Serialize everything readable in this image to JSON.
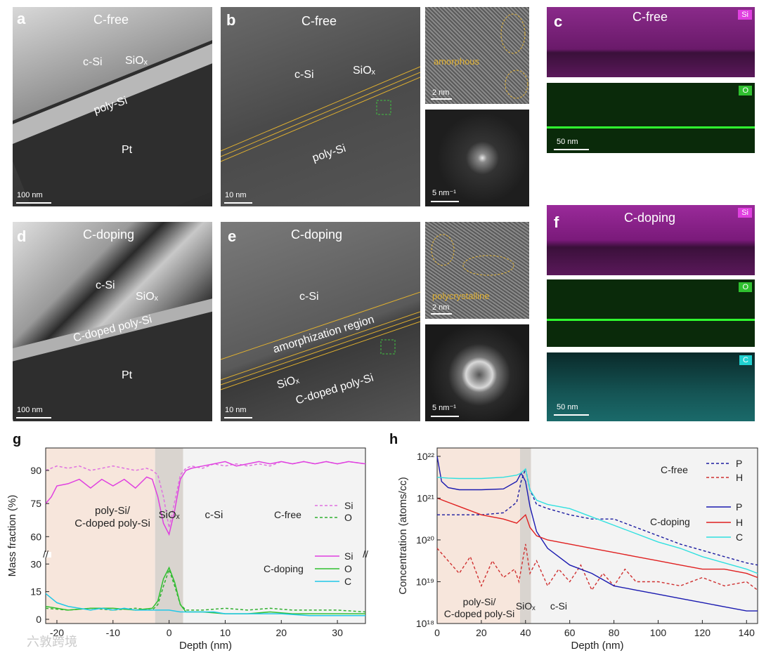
{
  "panels": {
    "a": {
      "letter": "a",
      "title": "C-free",
      "labels": {
        "csi": "c-Si",
        "siox": "SiOₓ",
        "polysi": "poly-Si",
        "pt": "Pt"
      },
      "scale": "100 nm"
    },
    "b": {
      "letter": "b",
      "title": "C-free",
      "labels": {
        "csi": "c-Si",
        "siox": "SiOₓ",
        "polysi": "poly-Si"
      },
      "scale": "10 nm"
    },
    "b_inset_hr": {
      "label": "amorphous",
      "scale": "2 nm"
    },
    "b_inset_fft": {
      "scale": "5 nm⁻¹"
    },
    "c": {
      "letter": "c",
      "title": "C-free",
      "maps": [
        {
          "element": "Si",
          "color": "#e040e0"
        },
        {
          "element": "O",
          "color": "#30d030"
        }
      ],
      "scale": "50 nm"
    },
    "d": {
      "letter": "d",
      "title": "C-doping",
      "labels": {
        "csi": "c-Si",
        "siox": "SiOₓ",
        "polysi": "C-doped poly-Si",
        "pt": "Pt"
      },
      "scale": "100 nm"
    },
    "e": {
      "letter": "e",
      "title": "C-doping",
      "labels": {
        "csi": "c-Si",
        "amorph": "amorphization region",
        "siox": "SiOₓ",
        "polysi": "C-doped poly-Si"
      },
      "scale": "10 nm"
    },
    "e_inset_hr": {
      "label": "polycrystalline",
      "scale": "2 nm"
    },
    "e_inset_fft": {
      "scale": "5 nm⁻¹"
    },
    "f": {
      "letter": "f",
      "title": "C-doping",
      "maps": [
        {
          "element": "Si",
          "color": "#e040e0"
        },
        {
          "element": "O",
          "color": "#30d030"
        },
        {
          "element": "C",
          "color": "#20d0d0"
        }
      ],
      "scale": "50 nm"
    }
  },
  "watermark": "六敦跨境",
  "chart_data": [
    {
      "id": "g",
      "letter": "g",
      "type": "line",
      "xlabel": "Depth (nm)",
      "ylabel": "Mass fraction (%)",
      "xlim": [
        -22,
        35
      ],
      "xticks": [
        -20,
        -10,
        0,
        10,
        20,
        30
      ],
      "yticks_upper": [
        60,
        75,
        90
      ],
      "yticks_lower": [
        0,
        15,
        30
      ],
      "region_labels": {
        "left": "poly-Si/\nC-doped poly-Si",
        "mid": "SiOₓ",
        "right": "c-Si"
      },
      "legend": {
        "cfree": "C-free",
        "cdoping": "C-doping"
      },
      "series": [
        {
          "name": "Si",
          "group": "C-free",
          "style": "dashed",
          "color": "#e070e0",
          "x": [
            -22,
            -20,
            -18,
            -16,
            -14,
            -12,
            -10,
            -8,
            -6,
            -4,
            -3,
            -2,
            -1,
            0,
            1,
            2,
            3,
            4,
            6,
            8,
            10,
            12,
            14,
            16,
            18,
            20,
            22,
            24,
            26,
            28,
            30,
            32,
            35
          ],
          "y": [
            90,
            92,
            91,
            92,
            90,
            91,
            92,
            91,
            90,
            91,
            90,
            88,
            78,
            64,
            76,
            88,
            91,
            92,
            91,
            93,
            92,
            93,
            92,
            93,
            92,
            94,
            93,
            94,
            93,
            94,
            93,
            94,
            93
          ]
        },
        {
          "name": "O",
          "group": "C-free",
          "style": "dashed",
          "color": "#30b030",
          "x": [
            -22,
            -18,
            -14,
            -10,
            -6,
            -3,
            -2,
            -1,
            0,
            1,
            2,
            3,
            6,
            10,
            14,
            18,
            22,
            26,
            30,
            35
          ],
          "y": [
            6,
            5,
            6,
            5,
            6,
            5,
            8,
            18,
            27,
            18,
            8,
            5,
            5,
            6,
            5,
            6,
            5,
            5,
            5,
            4
          ]
        },
        {
          "name": "Si",
          "group": "C-doping",
          "style": "solid",
          "color": "#e040e0",
          "x": [
            -22,
            -21,
            -20,
            -18,
            -16,
            -14,
            -12,
            -10,
            -8,
            -6,
            -4,
            -3,
            -2,
            -1,
            0,
            1,
            2,
            3,
            4,
            6,
            8,
            10,
            12,
            14,
            16,
            18,
            20,
            22,
            24,
            26,
            28,
            30,
            32,
            35
          ],
          "y": [
            75,
            78,
            83,
            84,
            86,
            82,
            86,
            83,
            86,
            82,
            87,
            86,
            78,
            66,
            61,
            72,
            86,
            90,
            91,
            92,
            93,
            94,
            92,
            93,
            94,
            93,
            94,
            93,
            94,
            93,
            94,
            93,
            94,
            93
          ]
        },
        {
          "name": "O",
          "group": "C-doping",
          "style": "solid",
          "color": "#30c030",
          "x": [
            -22,
            -18,
            -14,
            -10,
            -6,
            -3,
            -2,
            -1,
            0,
            1,
            2,
            3,
            6,
            10,
            14,
            18,
            22,
            26,
            30,
            35
          ],
          "y": [
            7,
            5,
            6,
            6,
            5,
            6,
            10,
            22,
            28,
            20,
            8,
            4,
            4,
            3,
            3,
            4,
            3,
            3,
            3,
            3
          ]
        },
        {
          "name": "C",
          "group": "C-doping",
          "style": "solid",
          "color": "#20c8e8",
          "x": [
            -22,
            -20,
            -18,
            -16,
            -14,
            -12,
            -10,
            -8,
            -6,
            -4,
            -2,
            0,
            2,
            4,
            6,
            8,
            10,
            15,
            20,
            25,
            30,
            35
          ],
          "y": [
            14,
            9,
            7,
            6,
            5,
            6,
            5,
            6,
            5,
            5,
            5,
            5,
            4,
            4,
            4,
            4,
            3,
            3,
            3,
            2,
            2,
            2
          ]
        }
      ]
    },
    {
      "id": "h",
      "letter": "h",
      "type": "line",
      "xlabel": "Depth (nm)",
      "ylabel": "Concentration (atoms/cc)",
      "xlim": [
        0,
        145
      ],
      "xticks": [
        0,
        20,
        40,
        60,
        80,
        100,
        120,
        140
      ],
      "ylim_log": [
        18,
        22.2
      ],
      "ytick_labels": [
        "10¹⁸",
        "10¹⁹",
        "10²⁰",
        "10²¹",
        "10²²"
      ],
      "region_labels": {
        "left": "poly-Si/\nC-doped poly-Si",
        "mid": "SiOₓ",
        "right": "c-Si"
      },
      "legend": {
        "cfree": "C-free",
        "cdoping": "C-doping"
      },
      "series": [
        {
          "name": "P",
          "group": "C-free",
          "style": "dashed",
          "color": "#1a1aa0",
          "x": [
            0,
            5,
            10,
            20,
            30,
            36,
            38,
            40,
            42,
            45,
            50,
            60,
            70,
            80,
            90,
            100,
            110,
            120,
            130,
            140,
            145
          ],
          "log": [
            20.6,
            20.6,
            20.6,
            20.6,
            20.65,
            20.9,
            21.4,
            21.7,
            21.2,
            20.85,
            20.75,
            20.6,
            20.5,
            20.5,
            20.3,
            20.1,
            19.9,
            19.75,
            19.6,
            19.45,
            19.4
          ]
        },
        {
          "name": "H",
          "group": "C-free",
          "style": "dashed",
          "color": "#d03030",
          "x": [
            0,
            5,
            10,
            15,
            20,
            25,
            30,
            35,
            37,
            40,
            42,
            45,
            50,
            55,
            60,
            65,
            70,
            75,
            80,
            85,
            90,
            100,
            110,
            120,
            130,
            140,
            145
          ],
          "log": [
            19.8,
            19.5,
            19.2,
            19.6,
            18.9,
            19.5,
            19.1,
            19.3,
            19.0,
            19.9,
            19.2,
            19.5,
            18.9,
            19.3,
            19.0,
            19.4,
            18.8,
            19.2,
            18.9,
            19.3,
            19.0,
            19.0,
            18.9,
            19.1,
            18.9,
            19.0,
            18.8
          ]
        },
        {
          "name": "P",
          "group": "C-doping",
          "style": "solid",
          "color": "#1a1ab0",
          "x": [
            0,
            2,
            5,
            10,
            20,
            30,
            36,
            38,
            40,
            42,
            45,
            50,
            60,
            70,
            80,
            90,
            100,
            110,
            120,
            130,
            140,
            145
          ],
          "log": [
            22.0,
            21.4,
            21.25,
            21.2,
            21.2,
            21.22,
            21.4,
            21.6,
            21.4,
            20.8,
            20.2,
            19.8,
            19.4,
            19.2,
            18.9,
            18.8,
            18.7,
            18.6,
            18.5,
            18.4,
            18.3,
            18.3
          ]
        },
        {
          "name": "H",
          "group": "C-doping",
          "style": "solid",
          "color": "#e02020",
          "x": [
            0,
            5,
            10,
            20,
            30,
            36,
            38,
            40,
            42,
            45,
            50,
            60,
            70,
            80,
            90,
            100,
            110,
            120,
            130,
            140,
            145
          ],
          "log": [
            21.0,
            20.9,
            20.8,
            20.6,
            20.5,
            20.4,
            20.5,
            20.6,
            20.3,
            20.1,
            20.0,
            19.9,
            19.8,
            19.7,
            19.6,
            19.5,
            19.4,
            19.3,
            19.3,
            19.2,
            19.1
          ]
        },
        {
          "name": "C",
          "group": "C-doping",
          "style": "solid",
          "color": "#30e0e0",
          "x": [
            0,
            5,
            10,
            20,
            30,
            36,
            38,
            40,
            42,
            45,
            50,
            60,
            70,
            80,
            90,
            100,
            110,
            120,
            130,
            140,
            145
          ],
          "log": [
            21.5,
            21.48,
            21.47,
            21.47,
            21.5,
            21.55,
            21.6,
            21.7,
            21.2,
            20.95,
            20.85,
            20.75,
            20.55,
            20.35,
            20.15,
            19.95,
            19.8,
            19.6,
            19.45,
            19.3,
            19.2
          ]
        }
      ]
    }
  ]
}
